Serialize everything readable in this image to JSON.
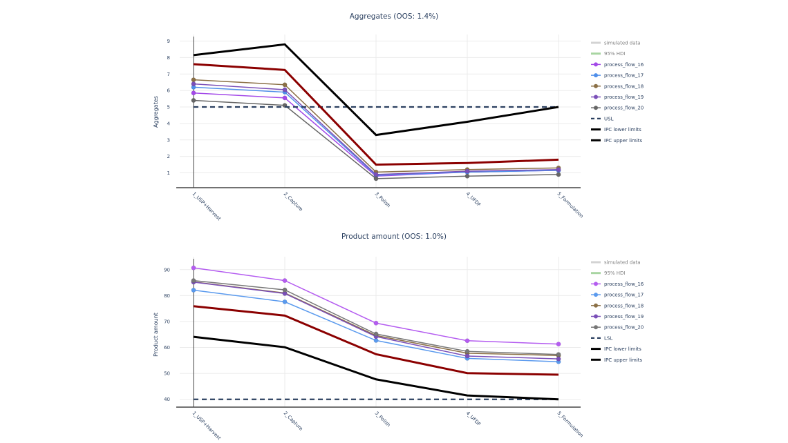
{
  "chart_data": [
    {
      "type": "line",
      "title": "Aggregates (OOS: 1.4%)",
      "xlabel": "",
      "ylabel": "Aggregates",
      "ylim": [
        0.1,
        9.4
      ],
      "yticks": [
        1,
        2,
        3,
        4,
        5,
        6,
        7,
        8,
        9
      ],
      "grid": true,
      "legend_position": "right",
      "categories": [
        "1_USP+Harvest",
        "2_Capture",
        "3_Polish",
        "4_UFDF",
        "5_Formulation"
      ],
      "series": [
        {
          "name": "process_flow_16",
          "color": "#a349e8",
          "markers": true,
          "values": [
            5.85,
            5.55,
            0.8,
            1.05,
            1.15
          ]
        },
        {
          "name": "process_flow_17",
          "color": "#4f8fea",
          "markers": true,
          "values": [
            6.2,
            5.9,
            0.85,
            1.05,
            1.15
          ]
        },
        {
          "name": "process_flow_18",
          "color": "#8b7046",
          "markers": true,
          "values": [
            6.65,
            6.35,
            1.05,
            1.2,
            1.3
          ]
        },
        {
          "name": "process_flow_19",
          "color": "#7a4fb8",
          "markers": true,
          "values": [
            6.4,
            6.05,
            0.9,
            1.1,
            1.2
          ]
        },
        {
          "name": "process_flow_20",
          "color": "#666666",
          "markers": true,
          "values": [
            5.4,
            5.1,
            0.65,
            0.8,
            0.9
          ]
        },
        {
          "name": "USL",
          "color": "#2a3f5f",
          "dash": true,
          "values": [
            5,
            5,
            5,
            5,
            5
          ]
        },
        {
          "name": "IPC lower limits",
          "color": "#8b0000",
          "values": [
            7.6,
            7.25,
            1.5,
            1.6,
            1.8
          ]
        },
        {
          "name": "IPC upper limits",
          "color": "#000000",
          "values": [
            8.15,
            8.8,
            3.3,
            4.1,
            5.0
          ]
        }
      ],
      "legend": [
        {
          "label": "simulated data",
          "kind": "line",
          "color": "#d3d3d3",
          "muted": true
        },
        {
          "label": "95% HDI",
          "kind": "line",
          "color": "#a8d5a2",
          "muted": true
        },
        {
          "label": "process_flow_16",
          "kind": "marker",
          "color": "#a349e8"
        },
        {
          "label": "process_flow_17",
          "kind": "marker",
          "color": "#4f8fea"
        },
        {
          "label": "process_flow_18",
          "kind": "marker",
          "color": "#8b7046"
        },
        {
          "label": "process_flow_19",
          "kind": "marker",
          "color": "#7a4fb8"
        },
        {
          "label": "process_flow_20",
          "kind": "marker",
          "color": "#666666"
        },
        {
          "label": "USL",
          "kind": "dash",
          "color": "#2a3f5f"
        },
        {
          "label": "IPC lower limits",
          "kind": "thick",
          "color": "#000000"
        },
        {
          "label": "IPC upper limits",
          "kind": "thick",
          "color": "#000000"
        }
      ]
    },
    {
      "type": "line",
      "title": "Product amount (OOS: 1.0%)",
      "xlabel": "",
      "ylabel": "Product amount",
      "ylim": [
        37,
        95
      ],
      "yticks": [
        40,
        50,
        60,
        70,
        80,
        90
      ],
      "grid": true,
      "legend_position": "right",
      "categories": [
        "1_USP+Harvest",
        "2_Capture",
        "3_Polish",
        "4_UFDF",
        "5_Formulation"
      ],
      "series": [
        {
          "name": "process_flow_16",
          "color": "#b45cf0",
          "markers": true,
          "values": [
            90.7,
            85.8,
            69.4,
            62.6,
            61.3
          ]
        },
        {
          "name": "process_flow_17",
          "color": "#5a9aee",
          "markers": true,
          "values": [
            82.1,
            77.6,
            62.7,
            55.8,
            54.5
          ]
        },
        {
          "name": "process_flow_18",
          "color": "#8b7046",
          "markers": true,
          "values": [
            85.3,
            81.0,
            64.6,
            57.8,
            56.9
          ]
        },
        {
          "name": "process_flow_19",
          "color": "#7a4fb8",
          "markers": true,
          "values": [
            85.2,
            80.8,
            64.2,
            56.7,
            55.6
          ]
        },
        {
          "name": "process_flow_20",
          "color": "#777777",
          "markers": true,
          "values": [
            85.8,
            82.2,
            65.2,
            58.5,
            57.3
          ]
        },
        {
          "name": "LSL",
          "color": "#2a3f5f",
          "dash": true,
          "values": [
            40,
            40,
            40,
            40,
            40
          ]
        },
        {
          "name": "IPC lower limits",
          "color": "#000000",
          "values": [
            64.1,
            60.1,
            47.7,
            41.5,
            40.0
          ]
        },
        {
          "name": "IPC upper limits",
          "color": "#8b0000",
          "values": [
            75.9,
            72.3,
            57.4,
            50.1,
            49.5
          ]
        }
      ],
      "legend": [
        {
          "label": "simulated data",
          "kind": "line",
          "color": "#d3d3d3",
          "muted": true
        },
        {
          "label": "95% HDI",
          "kind": "line",
          "color": "#a8d5a2",
          "muted": true
        },
        {
          "label": "process_flow_16",
          "kind": "marker",
          "color": "#b45cf0"
        },
        {
          "label": "process_flow_17",
          "kind": "marker",
          "color": "#5a9aee"
        },
        {
          "label": "process_flow_18",
          "kind": "marker",
          "color": "#8b7046"
        },
        {
          "label": "process_flow_19",
          "kind": "marker",
          "color": "#7a4fb8"
        },
        {
          "label": "process_flow_20",
          "kind": "marker",
          "color": "#777777"
        },
        {
          "label": "LSL",
          "kind": "dash",
          "color": "#2a3f5f"
        },
        {
          "label": "IPC lower limits",
          "kind": "thick",
          "color": "#000000"
        },
        {
          "label": "IPC upper limits",
          "kind": "thick",
          "color": "#000000"
        }
      ]
    }
  ]
}
